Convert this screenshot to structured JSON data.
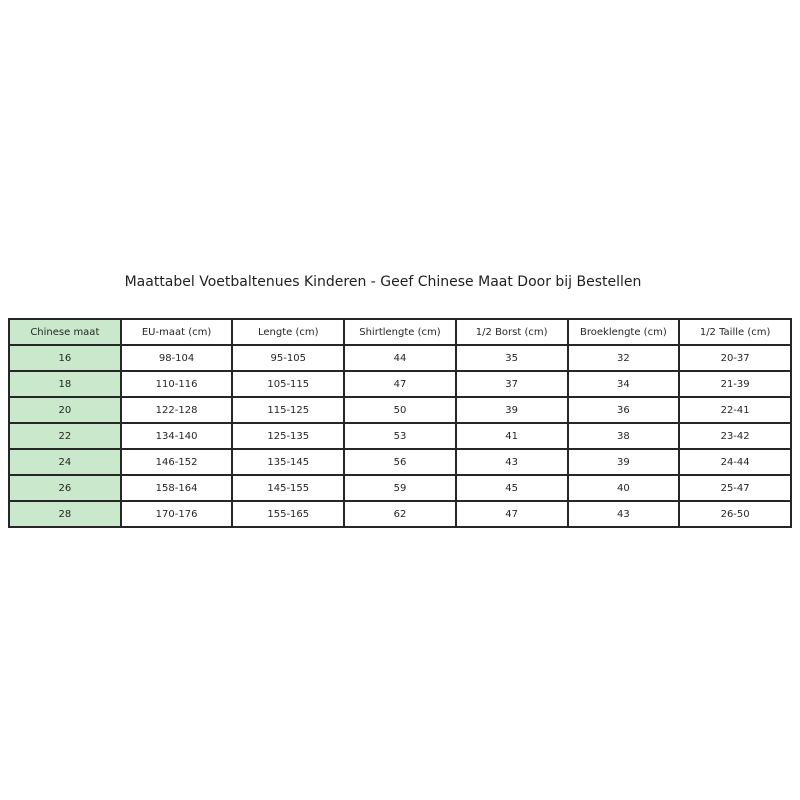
{
  "page": {
    "background_color": "#ffffff",
    "text_color": "#262626",
    "border_color": "#262626"
  },
  "title": "Maattabel Voetbaltenues Kinderen - Geef Chinese Maat Door bij Bestellen",
  "table": {
    "accent_green": "#c9e8cc",
    "columns": [
      "Chinese maat",
      "EU-maat (cm)",
      "Lengte (cm)",
      "Shirtlengte (cm)",
      "1/2 Borst (cm)",
      "Broeklengte (cm)",
      "1/2 Taille (cm)"
    ],
    "rows": [
      [
        "16",
        "98-104",
        "95-105",
        "44",
        "35",
        "32",
        "20-37"
      ],
      [
        "18",
        "110-116",
        "105-115",
        "47",
        "37",
        "34",
        "21-39"
      ],
      [
        "20",
        "122-128",
        "115-125",
        "50",
        "39",
        "36",
        "22-41"
      ],
      [
        "22",
        "134-140",
        "125-135",
        "53",
        "41",
        "38",
        "23-42"
      ],
      [
        "24",
        "146-152",
        "135-145",
        "56",
        "43",
        "39",
        "24-44"
      ],
      [
        "26",
        "158-164",
        "145-155",
        "59",
        "45",
        "40",
        "25-47"
      ],
      [
        "28",
        "170-176",
        "155-165",
        "62",
        "47",
        "43",
        "26-50"
      ]
    ]
  },
  "chart_data": {
    "type": "table",
    "title": "Maattabel Voetbaltenues Kinderen - Geef Chinese Maat Door bij Bestellen",
    "columns": [
      "Chinese maat",
      "EU-maat (cm)",
      "Lengte (cm)",
      "Shirtlengte (cm)",
      "1/2 Borst (cm)",
      "Broeklengte (cm)",
      "1/2 Taille (cm)"
    ],
    "rows": [
      [
        "16",
        "98-104",
        "95-105",
        "44",
        "35",
        "32",
        "20-37"
      ],
      [
        "18",
        "110-116",
        "105-115",
        "47",
        "37",
        "34",
        "21-39"
      ],
      [
        "20",
        "122-128",
        "115-125",
        "50",
        "39",
        "36",
        "22-41"
      ],
      [
        "22",
        "134-140",
        "125-135",
        "53",
        "41",
        "38",
        "23-42"
      ],
      [
        "24",
        "146-152",
        "135-145",
        "56",
        "43",
        "39",
        "24-44"
      ],
      [
        "26",
        "158-164",
        "145-155",
        "59",
        "45",
        "40",
        "25-47"
      ],
      [
        "28",
        "170-176",
        "155-165",
        "62",
        "47",
        "43",
        "26-50"
      ]
    ],
    "layout_hints": {
      "first_column_fill": "#c9e8cc",
      "cell_fill": "#ffffff",
      "grid": "all-cell-borders",
      "title_position": "top-center"
    }
  }
}
